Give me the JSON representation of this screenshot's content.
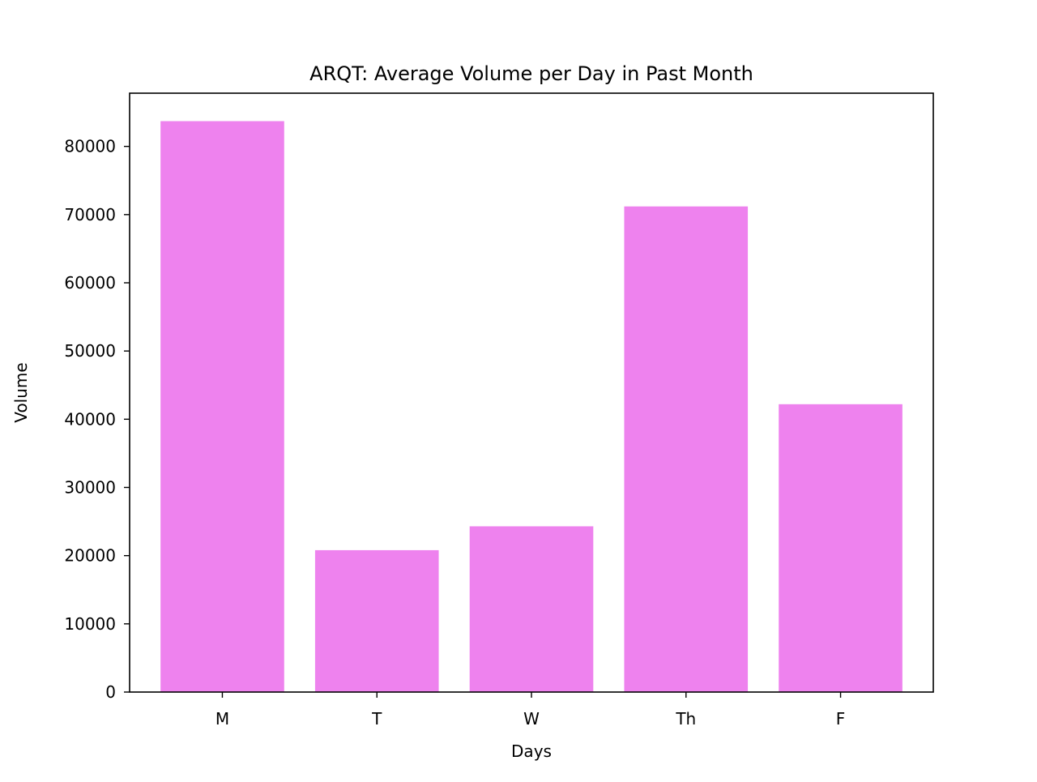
{
  "chart_data": {
    "type": "bar",
    "title": "ARQT: Average Volume per Day in Past Month",
    "xlabel": "Days",
    "ylabel": "Volume",
    "categories": [
      "M",
      "T",
      "W",
      "Th",
      "F"
    ],
    "values": [
      83700,
      20800,
      24300,
      71200,
      42200
    ],
    "ylim": [
      0,
      87800
    ],
    "yticks": [
      0,
      10000,
      20000,
      30000,
      40000,
      50000,
      60000,
      70000,
      80000
    ],
    "ytick_labels": [
      "0",
      "10000",
      "20000",
      "30000",
      "40000",
      "50000",
      "60000",
      "70000",
      "80000"
    ],
    "grid": false,
    "legend": "none",
    "bar_color": "#ee82ee"
  }
}
